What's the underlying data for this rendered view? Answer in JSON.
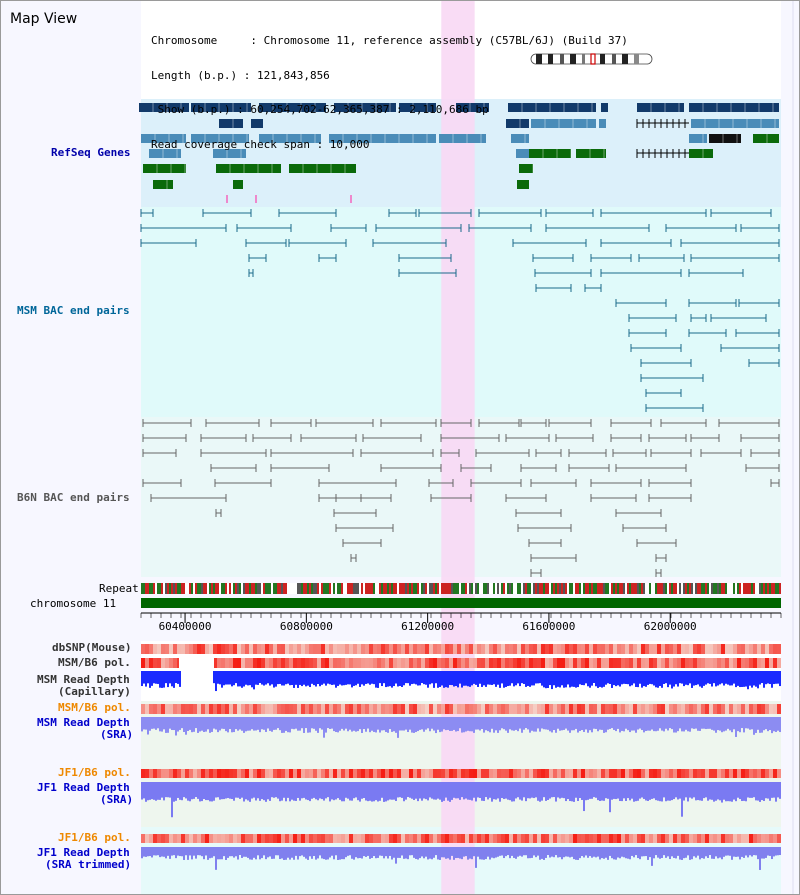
{
  "window": {
    "title": "Map View"
  },
  "info": {
    "chromosome_label": "Chromosome     : Chromosome 11, reference assembly (C57BL/6J) (Build 37)",
    "length_label": "Length (b.p.) : 121,843,856",
    "show_label": " Show (b.p.) : 60,254,702-62,365,387 : 2,110,686 bp",
    "span_label": "Read coverage check span : 10,000"
  },
  "view": {
    "start_bp": 60254702,
    "end_bp": 62365387,
    "highlight_start_bp": 61245000,
    "highlight_end_bp": 61355000
  },
  "tracks": {
    "refseq": {
      "label": "RefSeq Genes",
      "color": "#0000aa"
    },
    "msm_bac": {
      "label": "MSM BAC end pairs",
      "color": "#006699"
    },
    "b6n_bac": {
      "label": "B6N BAC end pairs",
      "color": "#555555"
    },
    "repeat": {
      "label": "Repeat"
    },
    "chromosome": {
      "label": "chromosome 11",
      "color": "#006600"
    },
    "dbsnp": {
      "label": "dbSNP(Mouse)"
    },
    "msm_b6_pol_1": {
      "label": "MSM/B6 pol."
    },
    "msm_depth_cap": {
      "label_line1": "MSM Read Depth",
      "label_line2": "(Capillary)"
    },
    "msm_b6_pol_2": {
      "label": "MSM/B6 pol.",
      "color": "#ee8800"
    },
    "msm_depth_sra": {
      "label_line1": "MSM Read Depth",
      "label_line2": "(SRA)",
      "color": "#0000cc"
    },
    "jf1_b6_pol_1": {
      "label": "JF1/B6 pol.",
      "color": "#ee8800"
    },
    "jf1_depth_sra": {
      "label_line1": "JF1 Read Depth",
      "label_line2": "(SRA)",
      "color": "#0000cc"
    },
    "jf1_b6_pol_2": {
      "label": "JF1/B6 pol.",
      "color": "#ee8800"
    },
    "jf1_depth_trim": {
      "label_line1": "JF1 Read Depth",
      "label_line2": "(SRA trimmed)",
      "color": "#0000cc"
    }
  },
  "axis": {
    "ticks": [
      "60400000",
      "60800000",
      "61200000",
      "61600000",
      "62000000"
    ]
  },
  "colors": {
    "refseq_bg": "#dcf0fa",
    "bac_bg": "#e0fafa",
    "b6n_bg": "#eaf8f8",
    "highlight": "#f8d8f4",
    "gene_dark": "#123a6a",
    "gene_mid": "#4a8cb8",
    "gene_green": "#0a6a0a"
  }
}
